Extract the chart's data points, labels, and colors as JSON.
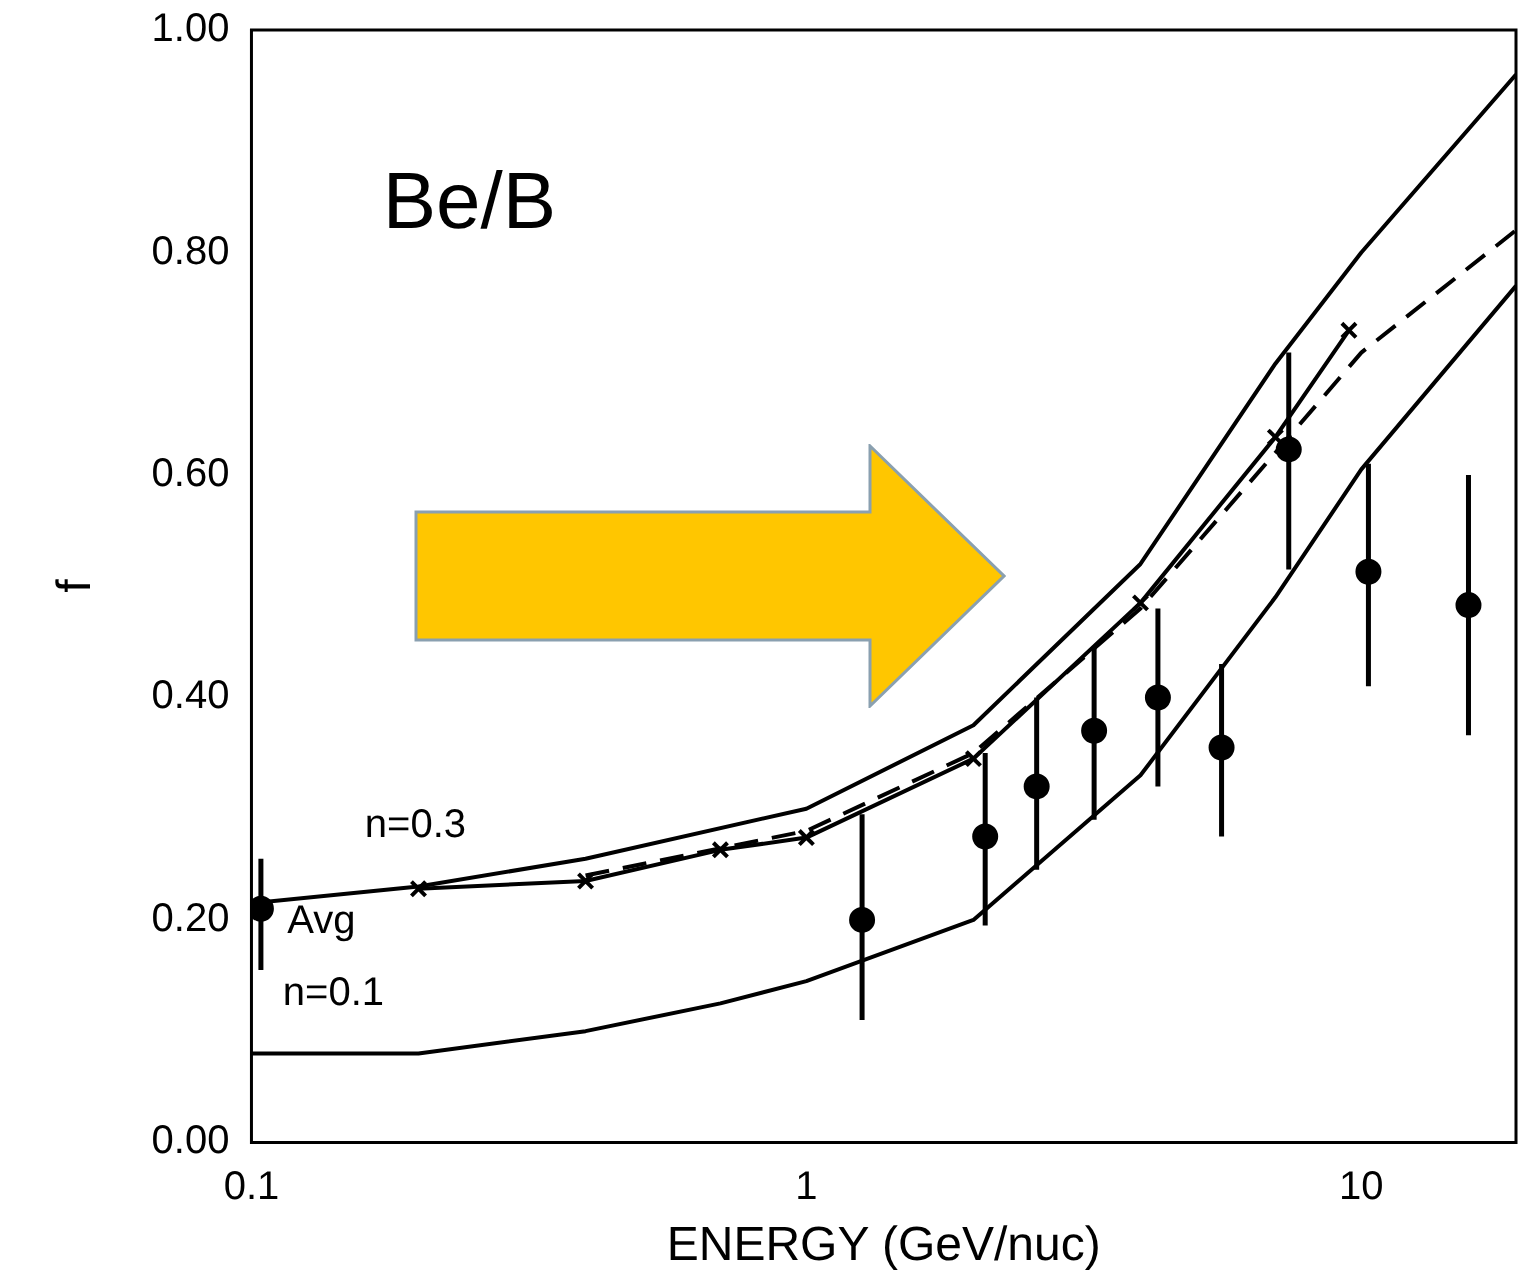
{
  "chart_data": {
    "type": "line",
    "xlabel": "ENERGY (GeV/nuc)",
    "ylabel": "f",
    "log": "x",
    "xlim": [
      0.1,
      19
    ],
    "xticks": [
      0.1,
      1,
      10
    ],
    "ylim": [
      0,
      1
    ],
    "yticks": [
      {
        "value": 0,
        "label": "0.00"
      },
      {
        "value": 0.2,
        "label": "0.20"
      },
      {
        "value": 0.4,
        "label": "0.40"
      },
      {
        "value": 0.6,
        "label": "0.60"
      },
      {
        "value": 0.8,
        "label": "0.80"
      },
      {
        "value": 1,
        "label": "1.00"
      }
    ],
    "grid": false,
    "legend": false,
    "series": [
      {
        "type": "line",
        "color": "#000000",
        "marker": "none",
        "line_style": "solid",
        "x": [
          0.1,
          0.2,
          0.4,
          1,
          2,
          4,
          7,
          10,
          19
        ],
        "values": [
          0.215,
          0.23,
          0.255,
          0.3,
          0.375,
          0.52,
          0.7,
          0.8,
          0.96
        ]
      },
      {
        "type": "line",
        "color": "#000000",
        "marker": "none",
        "line_style": "solid",
        "x": [
          0.1,
          0.2,
          0.4,
          0.7,
          1,
          2,
          4,
          7,
          10,
          19
        ],
        "values": [
          0.08,
          0.08,
          0.1,
          0.125,
          0.145,
          0.2,
          0.33,
          0.49,
          0.605,
          0.77
        ]
      },
      {
        "type": "line",
        "color": "#000000",
        "marker": "cross",
        "line_style": "solid",
        "x": [
          0.2,
          0.4,
          0.7,
          1,
          2,
          4,
          7,
          9.5
        ],
        "values": [
          0.228,
          0.235,
          0.263,
          0.274,
          0.345,
          0.485,
          0.634,
          0.73
        ]
      },
      {
        "type": "line",
        "color": "#000000",
        "marker": "none",
        "line_style": "dashed",
        "x": [
          0.4,
          1,
          2,
          4,
          7,
          10,
          19
        ],
        "values": [
          0.24,
          0.28,
          0.35,
          0.48,
          0.62,
          0.71,
          0.82
        ]
      },
      {
        "type": "scatter",
        "color": "#000000",
        "marker": "circle",
        "x": [
          1.26,
          2.1,
          2.6,
          3.3,
          4.3,
          5.6,
          7.4,
          10.3,
          15.6
        ],
        "values": [
          0.2,
          0.275,
          0.32,
          0.37,
          0.4,
          0.355,
          0.623,
          0.513,
          0.483
        ],
        "errors": [
          [
            0.11,
            0.295
          ],
          [
            0.195,
            0.35
          ],
          [
            0.245,
            0.4
          ],
          [
            0.29,
            0.445
          ],
          [
            0.32,
            0.48
          ],
          [
            0.275,
            0.43
          ],
          [
            0.515,
            0.71
          ],
          [
            0.41,
            0.61
          ],
          [
            0.366,
            0.6
          ]
        ]
      },
      {
        "type": "scatter",
        "color": "#000000",
        "marker": "circle",
        "x": [
          0.104
        ],
        "values": [
          0.21
        ],
        "errors": [
          [
            0.155,
            0.255
          ]
        ]
      }
    ],
    "annotations": [
      "Be/B",
      "n=0.3",
      "n=0.1",
      "Avg"
    ]
  }
}
